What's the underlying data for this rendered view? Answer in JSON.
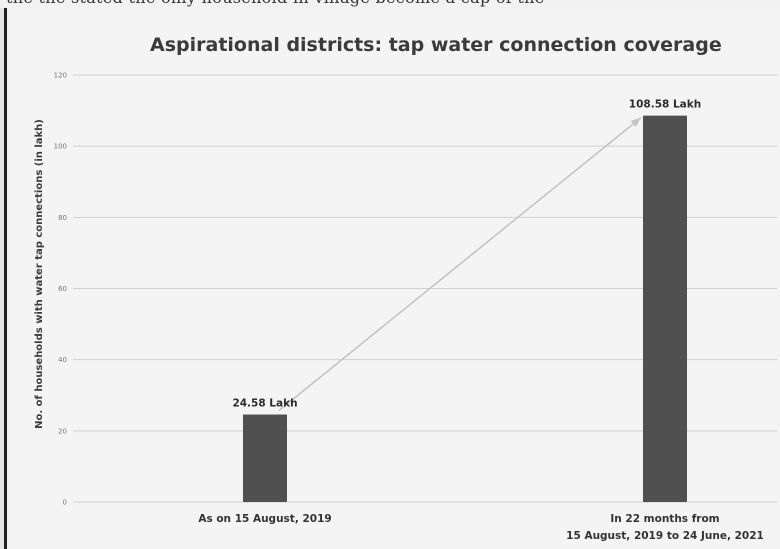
{
  "colors": {
    "bar": "#505050",
    "grid": "#d0d0d0",
    "arrow": "#c4c4c4",
    "background": "#f4f4f4"
  },
  "chart_data": {
    "type": "bar",
    "title": "Aspirational districts: tap water connection coverage",
    "xlabel": "",
    "ylabel": "No. of households with water tap connections (in lakh)",
    "ylim": [
      0,
      120
    ],
    "yticks": [
      0,
      20,
      40,
      60,
      80,
      100,
      120
    ],
    "grid": true,
    "categories": [
      [
        "As on 15 August, 2019"
      ],
      [
        "In 22 months from",
        "15 August, 2019 to 24 June, 2021"
      ]
    ],
    "values": [
      24.58,
      108.58
    ],
    "data_labels": [
      "24.58 Lakh",
      "108.58 Lakh"
    ],
    "annotation": "arrow from first bar top to second bar top"
  }
}
